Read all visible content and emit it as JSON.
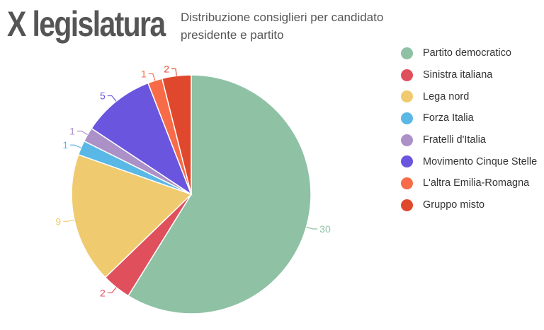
{
  "header": {
    "title": "X legislatura",
    "subtitle": "Distribuzione consiglieri per candidato presidente e partito"
  },
  "chart_data": {
    "type": "pie",
    "title": "X legislatura",
    "subtitle": "Distribuzione consiglieri per candidato presidente e partito",
    "legend_position": "right",
    "slices": [
      {
        "name": "Partito democratico",
        "value": 30,
        "color": "#8fc1a5"
      },
      {
        "name": "Sinistra italiana",
        "value": 2,
        "color": "#df4f5c"
      },
      {
        "name": "Lega nord",
        "value": 9,
        "color": "#f0ca6e"
      },
      {
        "name": "Forza Italia",
        "value": 1,
        "color": "#5ab8e6"
      },
      {
        "name": "Fratelli d'Italia",
        "value": 1,
        "color": "#ac91c9"
      },
      {
        "name": "Movimento Cinque Stelle",
        "value": 5,
        "color": "#6a55df"
      },
      {
        "name": "L'altra Emilia-Romagna",
        "value": 1,
        "color": "#f86b48"
      },
      {
        "name": "Gruppo misto",
        "value": 2,
        "color": "#e0482d"
      }
    ]
  }
}
